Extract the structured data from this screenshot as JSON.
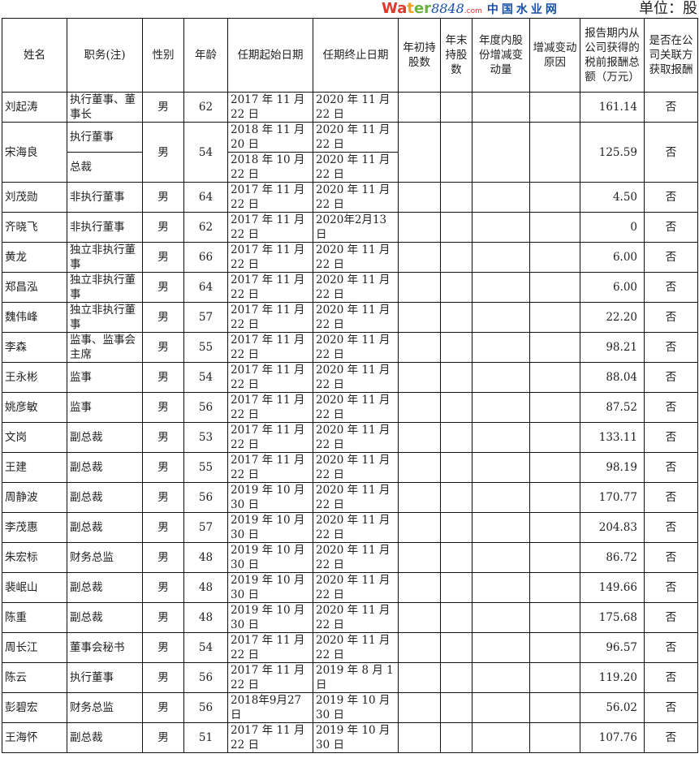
{
  "unit_label": "单位：股",
  "headers": [
    "姓名",
    "职务(注)",
    "性别",
    "年龄",
    "任期起始日期",
    "任期终止日期",
    "年初持股数",
    "年末持股数",
    "年度内股份增减变动量",
    "增减变动原因",
    "报告期内从公司获得的税前报酬总额（万元）",
    "是否在公司关联方获取报酬"
  ],
  "rows": [
    {
      "name": "刘起涛",
      "title": "执行董事、董事长",
      "gender": "男",
      "age": "62",
      "start": "2017 年 11 月 22 日",
      "end": "2020 年 11 月 22 日",
      "pay": "161.14",
      "related": "否"
    },
    {
      "name": "宋海良",
      "title": "执行董事",
      "gender": "男",
      "age": "54",
      "start": "2018 年 11 月 20 日",
      "end": "2020 年 11 月 22 日",
      "pay": "125.59",
      "related": "否",
      "sub": {
        "title": "总裁",
        "start": "2018 年 10 月 22 日",
        "end": "2020 年 11 月 22 日"
      }
    },
    {
      "name": "刘茂勋",
      "title": "非执行董事",
      "gender": "男",
      "age": "64",
      "start": "2017 年 11 月 22 日",
      "end": "2020 年 11 月 22 日",
      "pay": "4.50",
      "related": "否"
    },
    {
      "name": "齐晓飞",
      "title": "非执行董事",
      "gender": "男",
      "age": "62",
      "start": "2017 年 11 月 22 日",
      "end": "2020年2月13日",
      "pay": "0",
      "related": "否"
    },
    {
      "name": "黄龙",
      "title": "独立非执行董事",
      "gender": "男",
      "age": "66",
      "start": "2017 年 11 月 22 日",
      "end": "2020 年 11 月 22 日",
      "pay": "6.00",
      "related": "否"
    },
    {
      "name": "郑昌泓",
      "title": "独立非执行董事",
      "gender": "男",
      "age": "64",
      "start": "2017 年 11 月 22 日",
      "end": "2020 年 11 月 22 日",
      "pay": "6.00",
      "related": "否"
    },
    {
      "name": "魏伟峰",
      "title": "独立非执行董事",
      "gender": "男",
      "age": "57",
      "start": "2017 年 11 月 22 日",
      "end": "2020 年 11 月 22 日",
      "pay": "22.20",
      "related": "否"
    },
    {
      "name": "李森",
      "title": "监事、监事会主席",
      "gender": "男",
      "age": "55",
      "start": "2017 年 11 月 22 日",
      "end": "2020 年 11 月 22 日",
      "pay": "98.21",
      "related": "否"
    },
    {
      "name": "王永彬",
      "title": "监事",
      "gender": "男",
      "age": "54",
      "start": "2017 年 11 月 22 日",
      "end": "2020 年 11 月 22 日",
      "pay": "88.04",
      "related": "否"
    },
    {
      "name": "姚彦敏",
      "title": "监事",
      "gender": "男",
      "age": "56",
      "start": "2017 年 11 月 22 日",
      "end": "2020 年 11 月 22 日",
      "pay": "87.52",
      "related": "否"
    },
    {
      "name": "文岗",
      "title": "副总裁",
      "gender": "男",
      "age": "53",
      "start": "2017 年 11 月 22 日",
      "end": "2020 年 11 月 22 日",
      "pay": "133.11",
      "related": "否"
    },
    {
      "name": "王建",
      "title": "副总裁",
      "gender": "男",
      "age": "55",
      "start": "2017 年 11 月 22 日",
      "end": "2020 年 11 月 22 日",
      "pay": "98.19",
      "related": "否"
    },
    {
      "name": "周静波",
      "title": "副总裁",
      "gender": "男",
      "age": "56",
      "start": "2019 年 10 月 30 日",
      "end": "2020 年 11 月 22 日",
      "pay": "170.77",
      "related": "否"
    },
    {
      "name": "李茂惠",
      "title": "副总裁",
      "gender": "男",
      "age": "57",
      "start": "2019 年 10 月 30 日",
      "end": "2020 年 11 月 22 日",
      "pay": "204.83",
      "related": "否"
    },
    {
      "name": "朱宏标",
      "title": "财务总监",
      "gender": "男",
      "age": "48",
      "start": "2019 年 10 月 30 日",
      "end": "2020 年 11 月 22 日",
      "pay": "86.72",
      "related": "否"
    },
    {
      "name": "裴岷山",
      "title": "副总裁",
      "gender": "男",
      "age": "48",
      "start": "2019 年 10 月 30 日",
      "end": "2020 年 11 月 22 日",
      "pay": "149.66",
      "related": "否"
    },
    {
      "name": "陈重",
      "title": "副总裁",
      "gender": "男",
      "age": "48",
      "start": "2019 年 10 月 30 日",
      "end": "2020 年 11 月 22 日",
      "pay": "175.68",
      "related": "否"
    },
    {
      "name": "周长江",
      "title": "董事会秘书",
      "gender": "男",
      "age": "54",
      "start": "2017 年 11 月 22 日",
      "end": "2020 年 11 月 22 日",
      "pay": "96.57",
      "related": "否"
    },
    {
      "name": "陈云",
      "title": "执行董事",
      "gender": "男",
      "age": "56",
      "start": "2017 年 11 月 22 日",
      "end": "2019 年 8 月 1 日",
      "pay": "119.20",
      "related": "否"
    },
    {
      "name": "彭碧宏",
      "title": "财务总监",
      "gender": "男",
      "age": "56",
      "start": "2018年9月27日",
      "end": "2019 年 10 月 30 日",
      "pay": "56.02",
      "related": "否"
    },
    {
      "name": "王海怀",
      "title": "副总裁",
      "gender": "男",
      "age": "51",
      "start": "2017 年 11 月 22 日",
      "end": "2019 年 10 月 30 日",
      "pay": "107.76",
      "related": "否"
    }
  ],
  "watermark": {
    "brand": "water8848.com",
    "cn": "中国水业网",
    "colors": {
      "red": "#e03a2f",
      "green": "#6cb33e",
      "blue": "#1a4fa8"
    }
  }
}
